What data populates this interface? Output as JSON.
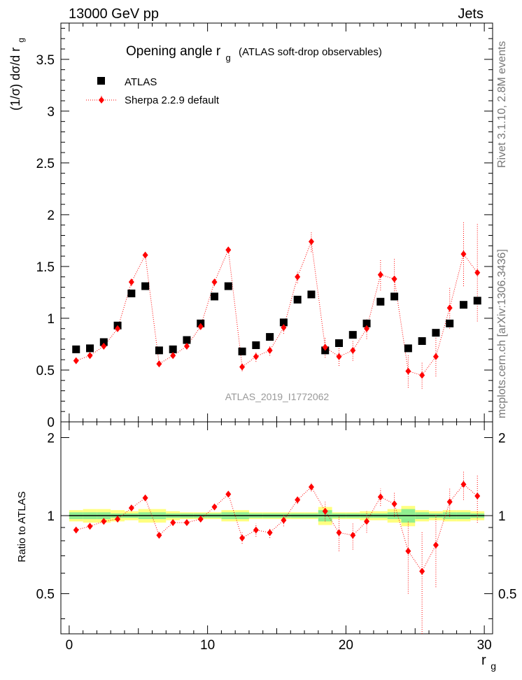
{
  "header": {
    "left": "13000 GeV pp",
    "right": "Jets"
  },
  "side": {
    "rivet": "Rivet 3.1.10,  2.8M events",
    "mcplots": "mcplots.cern.ch [arXiv:1306.3436]"
  },
  "watermark": "ATLAS_2019_I1772062",
  "chart_data": [
    {
      "type": "scatter",
      "title_main": "Opening angle r",
      "title_sub": "g",
      "title_rest": "(ATLAS soft-drop observables)",
      "ylabel": "(1/σ) dσ/d r",
      "ylabel_sub": "g",
      "xlim": [
        -0.6,
        30.6
      ],
      "ylim": [
        0,
        3.85
      ],
      "yticks": [
        0,
        0.5,
        1,
        1.5,
        2,
        2.5,
        3,
        3.5
      ],
      "ytick_labels": [
        "0",
        "0.5",
        "1",
        "1.5",
        "2",
        "2.5",
        "3",
        "3.5"
      ],
      "legend": "top-left",
      "x": [
        0.5,
        1.5,
        2.5,
        3.5,
        4.5,
        5.5,
        6.5,
        7.5,
        8.5,
        9.5,
        10.5,
        11.5,
        12.5,
        13.5,
        14.5,
        15.5,
        16.5,
        17.5,
        18.5,
        19.5,
        20.5,
        21.5,
        22.5,
        23.5,
        24.5,
        25.5,
        26.5,
        27.5,
        28.5,
        29.5
      ],
      "series": [
        {
          "name": "ATLAS",
          "color": "#000000",
          "marker": "square",
          "values": [
            0.7,
            0.71,
            0.77,
            0.93,
            1.24,
            1.31,
            0.69,
            0.7,
            0.79,
            0.95,
            1.21,
            1.31,
            0.68,
            0.74,
            0.82,
            0.96,
            1.18,
            1.23,
            0.69,
            0.76,
            0.84,
            0.95,
            1.16,
            1.21,
            0.71,
            0.78,
            0.86,
            0.95,
            1.13,
            1.17
          ]
        },
        {
          "name": "Sherpa 2.2.9 default",
          "color": "#ff0000",
          "marker": "diamond",
          "values": [
            0.59,
            0.64,
            0.73,
            0.9,
            1.35,
            1.61,
            0.56,
            0.64,
            0.73,
            0.92,
            1.35,
            1.66,
            0.53,
            0.63,
            0.69,
            0.91,
            1.4,
            1.74,
            0.72,
            0.63,
            0.69,
            0.9,
            1.42,
            1.38,
            0.49,
            0.45,
            0.63,
            1.1,
            1.62,
            1.44
          ],
          "errors": [
            0.02,
            0.02,
            0.02,
            0.03,
            0.04,
            0.03,
            0.02,
            0.02,
            0.03,
            0.03,
            0.04,
            0.03,
            0.04,
            0.05,
            0.05,
            0.06,
            0.06,
            0.1,
            0.1,
            0.09,
            0.1,
            0.1,
            0.15,
            0.2,
            0.16,
            0.13,
            0.19,
            0.2,
            0.31,
            0.47
          ]
        }
      ]
    },
    {
      "type": "scatter",
      "xlabel": "r",
      "xlabel_sub": "g",
      "ylabel": "Ratio to ATLAS",
      "xlim": [
        -0.6,
        30.6
      ],
      "ylim": [
        0.35,
        2.3
      ],
      "yticks": [
        0.5,
        1,
        2
      ],
      "ytick_labels": [
        "0.5",
        "1",
        "2"
      ],
      "xticks": [
        0,
        10,
        20,
        30
      ],
      "xtick_labels": [
        "0",
        "10",
        "20",
        "30"
      ],
      "reference_line": 1,
      "band_inner": [
        0.03,
        0.03,
        0.03,
        0.02,
        0.02,
        0.03,
        0.03,
        0.02,
        0.02,
        0.02,
        0.02,
        0.03,
        0.03,
        0.02,
        0.02,
        0.02,
        0.02,
        0.02,
        0.05,
        0.02,
        0.02,
        0.02,
        0.02,
        0.03,
        0.06,
        0.03,
        0.02,
        0.03,
        0.03,
        0.02
      ],
      "band_outer": [
        0.05,
        0.06,
        0.06,
        0.05,
        0.04,
        0.06,
        0.06,
        0.04,
        0.03,
        0.03,
        0.03,
        0.05,
        0.05,
        0.03,
        0.03,
        0.03,
        0.03,
        0.03,
        0.08,
        0.03,
        0.03,
        0.04,
        0.04,
        0.06,
        0.09,
        0.05,
        0.04,
        0.05,
        0.05,
        0.04
      ],
      "series": [
        {
          "name": "Sherpa 2.2.9 default",
          "color": "#ff0000",
          "values": [
            0.88,
            0.91,
            0.95,
            0.97,
            1.07,
            1.17,
            0.84,
            0.94,
            0.94,
            0.97,
            1.08,
            1.21,
            0.82,
            0.88,
            0.86,
            0.96,
            1.15,
            1.29,
            1.04,
            0.86,
            0.84,
            0.95,
            1.18,
            1.11,
            0.73,
            0.61,
            0.77,
            1.13,
            1.32,
            1.19
          ],
          "errors": [
            0.02,
            0.02,
            0.02,
            0.02,
            0.02,
            0.02,
            0.02,
            0.02,
            0.02,
            0.02,
            0.02,
            0.02,
            0.04,
            0.05,
            0.04,
            0.05,
            0.04,
            0.05,
            0.09,
            0.13,
            0.1,
            0.09,
            0.09,
            0.12,
            0.23,
            0.26,
            0.24,
            0.14,
            0.17,
            0.25
          ]
        }
      ]
    }
  ]
}
